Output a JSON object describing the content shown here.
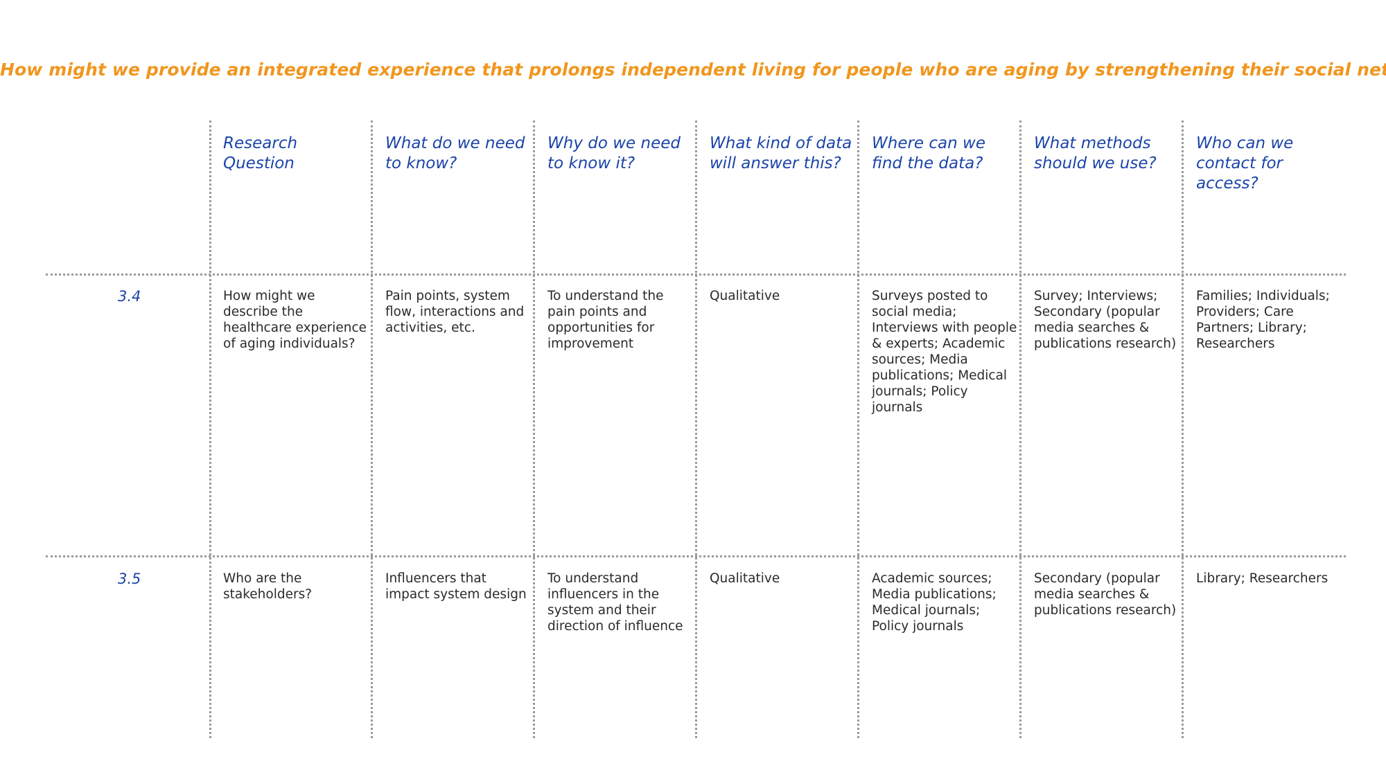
{
  "title": "How might we provide an integrated experience that prolongs independent living for people who are aging by strengthening their social network?",
  "colors": {
    "title": "#f0961e",
    "header": "#1b44a8",
    "body_text": "#2a2a2a",
    "grid_lines": "#9a9a9a"
  },
  "headers": [
    "Research Question",
    "What do we need to know?",
    "Why do we need to know it?",
    "What kind of data will answer this?",
    "Where can we find the data?",
    "What methods should we use?",
    "Who can we contact for access?"
  ],
  "rows": [
    {
      "id": "3.4",
      "cells": [
        "How might we describe the healthcare experience of aging individuals?",
        "Pain points, system flow, interactions and activities, etc.",
        "To understand the pain points and opportunities for improvement",
        "Qualitative",
        "Surveys posted to social media; Interviews with people & experts; Academic sources; Media publications; Medical journals; Policy journals",
        "Survey; Interviews; Secondary (popular media searches & publications research)",
        "Families; Individuals; Providers; Care Partners; Library; Researchers"
      ]
    },
    {
      "id": "3.5",
      "cells": [
        "Who are the stakeholders?",
        "Influencers that impact system design",
        "To understand influencers in the system and their direction of influence",
        "Qualitative",
        "Academic sources; Media publications; Medical journals; Policy journals",
        "Secondary (popular media searches & publications research)",
        "Library; Researchers"
      ]
    }
  ]
}
